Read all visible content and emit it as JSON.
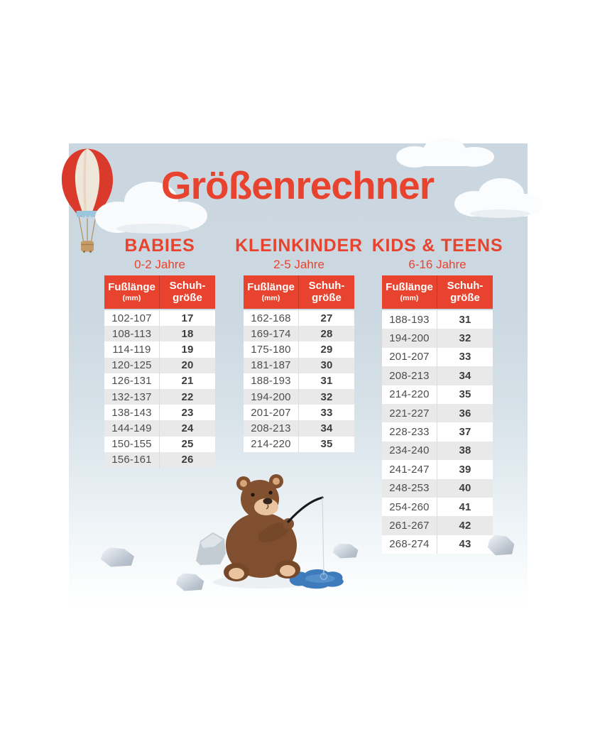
{
  "page": {
    "title": "Größenrechner",
    "background_color": "#ffffff",
    "panel_color": "#cdd9e2",
    "accent_color": "#e8432e",
    "row_alt_color": "#e9e9e9"
  },
  "sections": [
    {
      "title": "BABIES",
      "age": "0-2 Jahre",
      "header": {
        "col1": "Fußlänge",
        "col1_unit": "(mm)",
        "col2_line1": "Schuh-",
        "col2_line2": "größe"
      }
    },
    {
      "title": "KLEINKINDER",
      "age": "2-5 Jahre",
      "header": {
        "col1": "Fußlänge",
        "col1_unit": "(mm)",
        "col2_line1": "Schuh-",
        "col2_line2": "größe"
      }
    },
    {
      "title": "KIDS & TEENS",
      "age": "6-16 Jahre",
      "header": {
        "col1": "Fußlänge",
        "col1_unit": "(mm)",
        "col2_line1": "Schuh-",
        "col2_line2": "größe"
      }
    }
  ],
  "chart_data": [
    {
      "type": "table",
      "title": "BABIES",
      "subtitle": "0-2 Jahre",
      "columns": [
        "Fußlänge (mm)",
        "Schuh-größe"
      ],
      "rows": [
        [
          "102-107",
          "17"
        ],
        [
          "108-113",
          "18"
        ],
        [
          "114-119",
          "19"
        ],
        [
          "120-125",
          "20"
        ],
        [
          "126-131",
          "21"
        ],
        [
          "132-137",
          "22"
        ],
        [
          "138-143",
          "23"
        ],
        [
          "144-149",
          "24"
        ],
        [
          "150-155",
          "25"
        ],
        [
          "156-161",
          "26"
        ]
      ]
    },
    {
      "type": "table",
      "title": "KLEINKINDER",
      "subtitle": "2-5 Jahre",
      "columns": [
        "Fußlänge (mm)",
        "Schuh-größe"
      ],
      "rows": [
        [
          "162-168",
          "27"
        ],
        [
          "169-174",
          "28"
        ],
        [
          "175-180",
          "29"
        ],
        [
          "181-187",
          "30"
        ],
        [
          "188-193",
          "31"
        ],
        [
          "194-200",
          "32"
        ],
        [
          "201-207",
          "33"
        ],
        [
          "208-213",
          "34"
        ],
        [
          "214-220",
          "35"
        ]
      ]
    },
    {
      "type": "table",
      "title": "KIDS & TEENS",
      "subtitle": "6-16 Jahre",
      "columns": [
        "Fußlänge (mm)",
        "Schuh-größe"
      ],
      "rows": [
        [
          "188-193",
          "31"
        ],
        [
          "194-200",
          "32"
        ],
        [
          "201-207",
          "33"
        ],
        [
          "208-213",
          "34"
        ],
        [
          "214-220",
          "35"
        ],
        [
          "221-227",
          "36"
        ],
        [
          "228-233",
          "37"
        ],
        [
          "234-240",
          "38"
        ],
        [
          "241-247",
          "39"
        ],
        [
          "248-253",
          "40"
        ],
        [
          "254-260",
          "41"
        ],
        [
          "261-267",
          "42"
        ],
        [
          "268-274",
          "43"
        ]
      ]
    }
  ],
  "icons": {
    "balloon": "hot-air-balloon-illustration",
    "cloud": "cloud-illustration",
    "bear": "bear-fishing-illustration",
    "rock": "rock-illustration",
    "puddle": "ice-hole-puddle"
  }
}
